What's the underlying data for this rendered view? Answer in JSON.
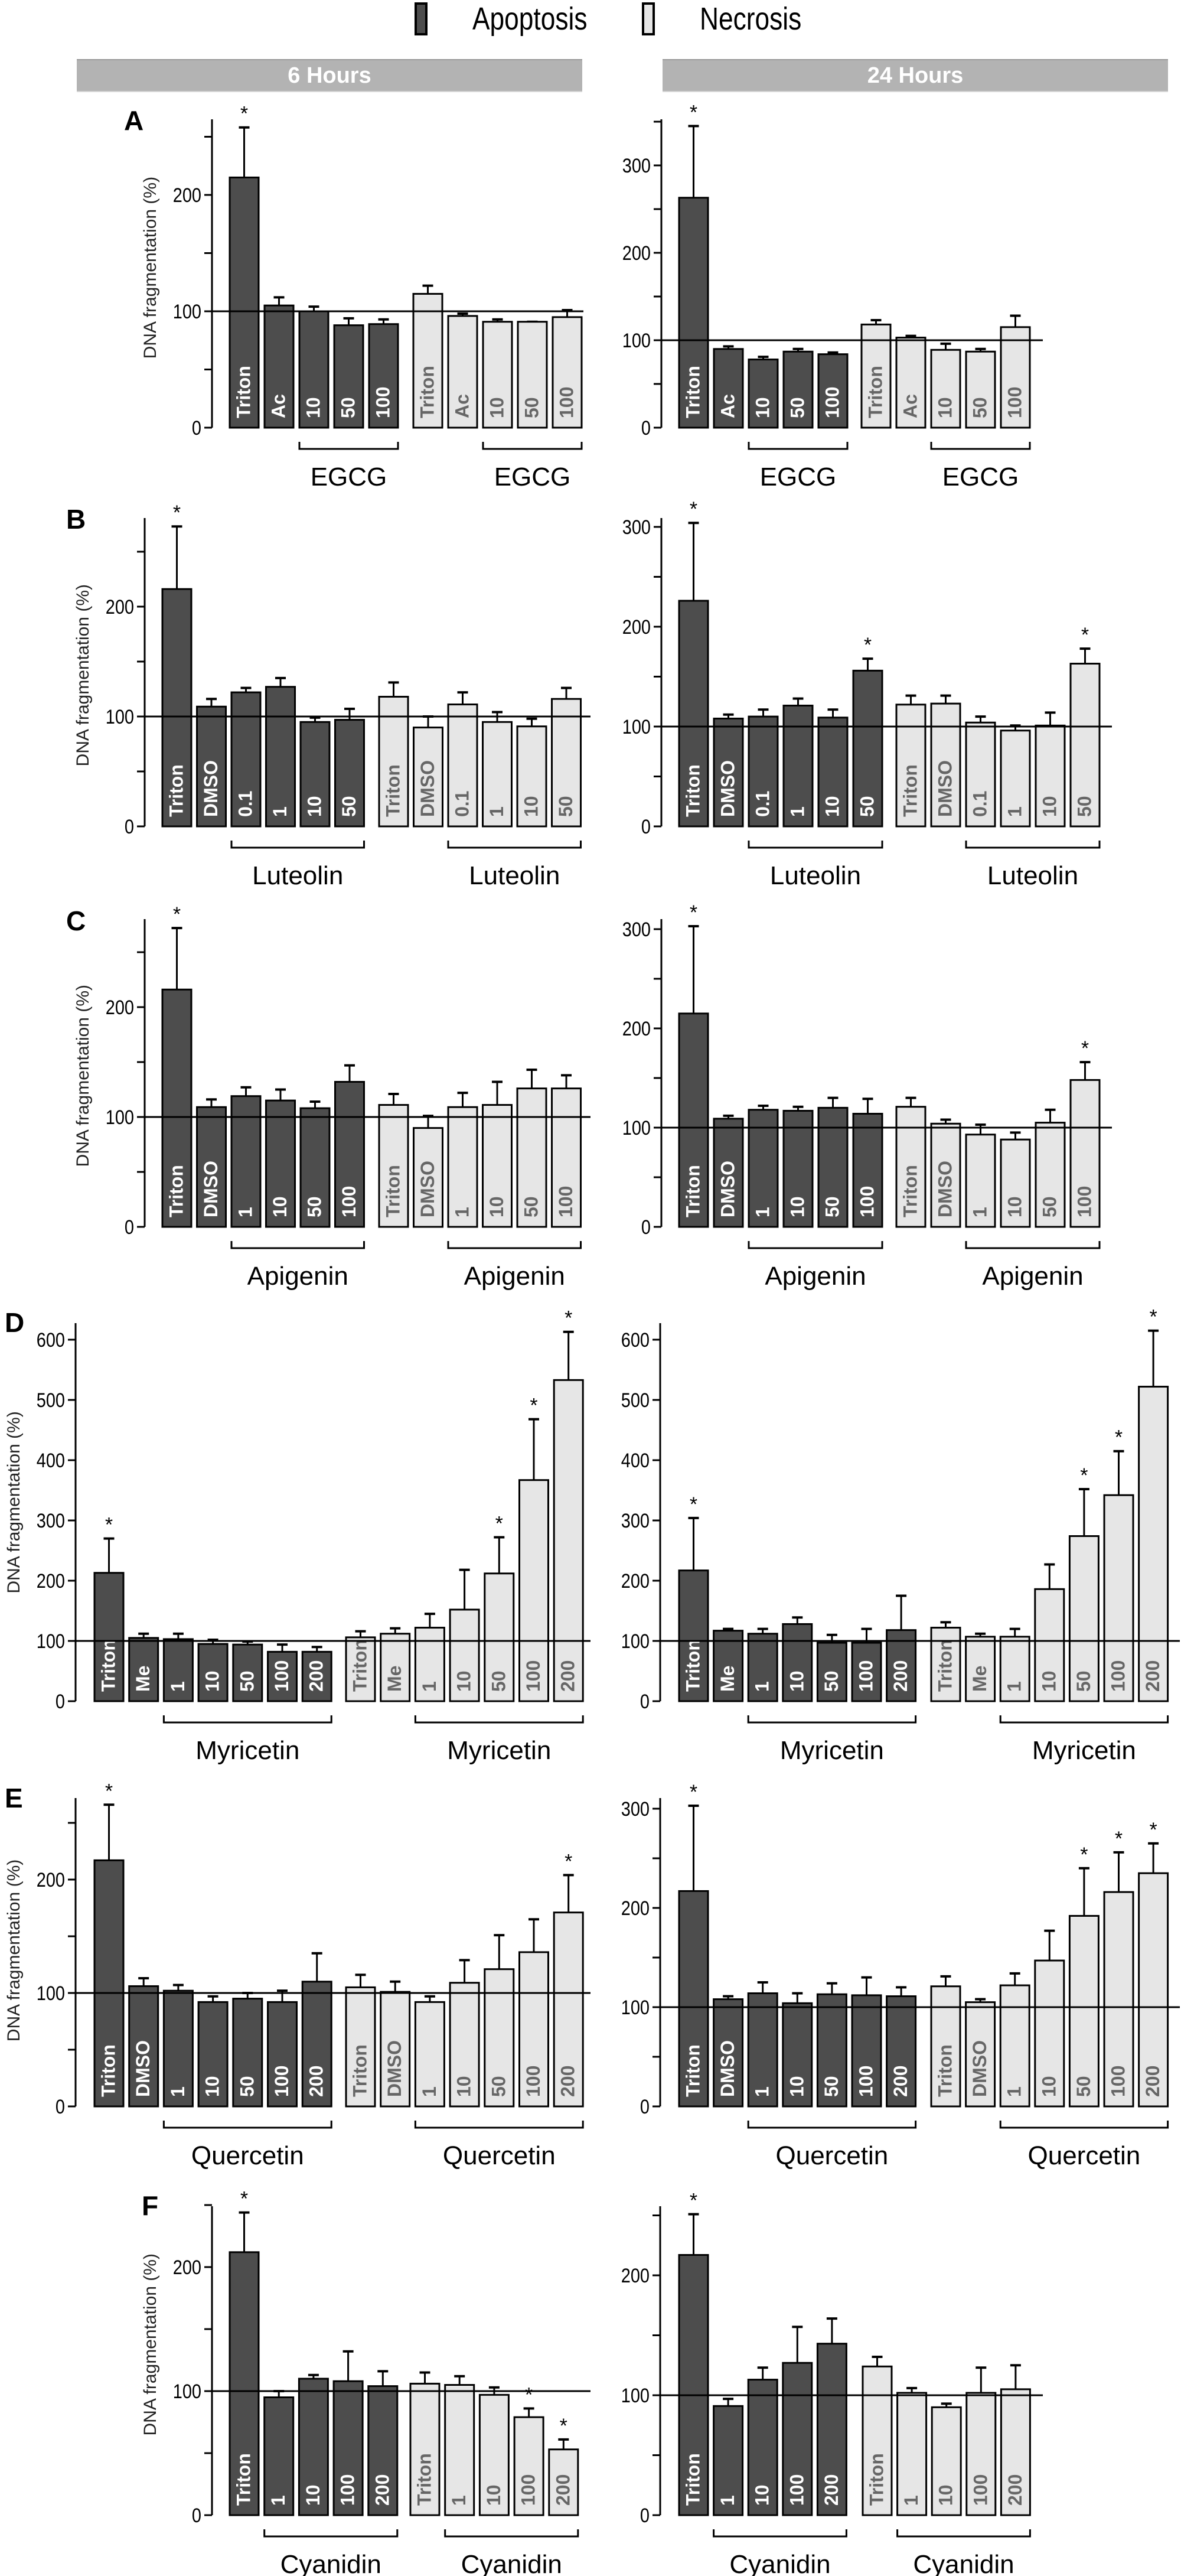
{
  "legend": {
    "items": [
      {
        "label": "Apoptosis",
        "color": "#4d4d4d"
      },
      {
        "label": "Necrosis",
        "color": "#e6e6e6"
      }
    ]
  },
  "headers": {
    "left": "6 Hours",
    "right": "24 Hours"
  },
  "y_axis_label": "DNA fragmentation (%)",
  "colors": {
    "apoptosis": "#4d4d4d",
    "necrosis": "#e6e6e6",
    "header": "#b3b3b3",
    "apoptosis_text": "#ffffff",
    "necrosis_text": "#666666"
  },
  "chart_data": [
    {
      "type": "bar",
      "panel": "A",
      "time": "6 Hours",
      "compound": "EGCG",
      "ylabel": "DNA fragmentation (%)",
      "ylim": [
        0,
        250
      ],
      "yticks": [
        0,
        100,
        200
      ],
      "reference_line": 100,
      "series": [
        {
          "name": "Apoptosis",
          "categories": [
            "Triton",
            "Ac",
            "10",
            "50",
            "100"
          ],
          "values": [
            215,
            105,
            100,
            88,
            89
          ],
          "error_upper": [
            258,
            112,
            104,
            94,
            93
          ],
          "significant": [
            true,
            false,
            false,
            false,
            false
          ]
        },
        {
          "name": "Necrosis",
          "categories": [
            "Triton",
            "Ac",
            "10",
            "50",
            "100"
          ],
          "values": [
            115,
            96,
            91,
            91,
            95
          ],
          "error_upper": [
            122,
            98,
            93,
            91,
            101
          ],
          "significant": [
            false,
            false,
            false,
            false,
            false
          ]
        }
      ]
    },
    {
      "type": "bar",
      "panel": "A",
      "time": "24 Hours",
      "compound": "EGCG",
      "ylabel": "",
      "ylim": [
        0,
        350
      ],
      "yticks": [
        0,
        100,
        200,
        300
      ],
      "reference_line": 100,
      "series": [
        {
          "name": "Apoptosis",
          "categories": [
            "Triton",
            "Ac",
            "10",
            "50",
            "100"
          ],
          "values": [
            263,
            90,
            78,
            87,
            84
          ],
          "error_upper": [
            345,
            93,
            81,
            90,
            86
          ],
          "significant": [
            true,
            false,
            false,
            false,
            false
          ]
        },
        {
          "name": "Necrosis",
          "categories": [
            "Triton",
            "Ac",
            "10",
            "50",
            "100"
          ],
          "values": [
            118,
            103,
            89,
            87,
            115
          ],
          "error_upper": [
            123,
            105,
            96,
            90,
            128
          ],
          "significant": [
            false,
            false,
            false,
            false,
            false
          ]
        }
      ]
    },
    {
      "type": "bar",
      "panel": "B",
      "time": "6 Hours",
      "compound": "Luteolin",
      "ylabel": "DNA fragmentation (%)",
      "ylim": [
        0,
        250
      ],
      "yticks": [
        0,
        100,
        200
      ],
      "reference_line": 100,
      "series": [
        {
          "name": "Apoptosis",
          "categories": [
            "Triton",
            "DMSO",
            "0.1",
            "1",
            "10",
            "50"
          ],
          "values": [
            216,
            109,
            122,
            127,
            95,
            97
          ],
          "error_upper": [
            273,
            116,
            126,
            135,
            99,
            107
          ],
          "significant": [
            true,
            false,
            false,
            false,
            false,
            false
          ]
        },
        {
          "name": "Necrosis",
          "categories": [
            "Triton",
            "DMSO",
            "0.1",
            "1",
            "10",
            "50"
          ],
          "values": [
            118,
            90,
            111,
            95,
            91,
            116
          ],
          "error_upper": [
            131,
            100,
            122,
            104,
            98,
            126
          ],
          "significant": [
            false,
            false,
            false,
            false,
            false,
            false
          ]
        }
      ]
    },
    {
      "type": "bar",
      "panel": "B",
      "time": "24 Hours",
      "compound": "Luteolin",
      "ylabel": "",
      "ylim": [
        0,
        300
      ],
      "yticks": [
        0,
        100,
        200,
        300
      ],
      "reference_line": 100,
      "series": [
        {
          "name": "Apoptosis",
          "categories": [
            "Triton",
            "DMSO",
            "0.1",
            "1",
            "10",
            "50"
          ],
          "values": [
            226,
            108,
            110,
            121,
            109,
            156
          ],
          "error_upper": [
            304,
            112,
            117,
            128,
            117,
            168
          ],
          "significant": [
            true,
            false,
            false,
            false,
            false,
            true
          ]
        },
        {
          "name": "Necrosis",
          "categories": [
            "Triton",
            "DMSO",
            "0.1",
            "1",
            "10",
            "50"
          ],
          "values": [
            122,
            123,
            104,
            96,
            101,
            163
          ],
          "error_upper": [
            131,
            131,
            110,
            101,
            114,
            178
          ],
          "significant": [
            false,
            false,
            false,
            false,
            false,
            true
          ]
        }
      ]
    },
    {
      "type": "bar",
      "panel": "C",
      "time": "6 Hours",
      "compound": "Apigenin",
      "ylabel": "DNA fragmentation (%)",
      "ylim": [
        0,
        250
      ],
      "yticks": [
        0,
        100,
        200
      ],
      "reference_line": 100,
      "series": [
        {
          "name": "Apoptosis",
          "categories": [
            "Triton",
            "DMSO",
            "1",
            "10",
            "50",
            "100"
          ],
          "values": [
            216,
            109,
            119,
            115,
            108,
            132
          ],
          "error_upper": [
            272,
            116,
            127,
            125,
            114,
            147
          ],
          "significant": [
            true,
            false,
            false,
            false,
            false,
            false
          ]
        },
        {
          "name": "Necrosis",
          "categories": [
            "Triton",
            "DMSO",
            "1",
            "10",
            "50",
            "100"
          ],
          "values": [
            111,
            90,
            109,
            111,
            126,
            126
          ],
          "error_upper": [
            121,
            101,
            122,
            132,
            143,
            138
          ],
          "significant": [
            false,
            false,
            false,
            false,
            false,
            false
          ]
        }
      ]
    },
    {
      "type": "bar",
      "panel": "C",
      "time": "24 Hours",
      "compound": "Apigenin",
      "ylabel": "",
      "ylim": [
        0,
        300
      ],
      "yticks": [
        0,
        100,
        200,
        300
      ],
      "reference_line": 100,
      "series": [
        {
          "name": "Apoptosis",
          "categories": [
            "Triton",
            "DMSO",
            "1",
            "10",
            "50",
            "100"
          ],
          "values": [
            215,
            109,
            118,
            117,
            120,
            114
          ],
          "error_upper": [
            303,
            112,
            122,
            121,
            130,
            129
          ],
          "significant": [
            true,
            false,
            false,
            false,
            false,
            false
          ]
        },
        {
          "name": "Necrosis",
          "categories": [
            "Triton",
            "DMSO",
            "1",
            "10",
            "50",
            "100"
          ],
          "values": [
            121,
            104,
            93,
            88,
            105,
            148
          ],
          "error_upper": [
            130,
            108,
            103,
            95,
            118,
            166
          ],
          "significant": [
            false,
            false,
            false,
            false,
            false,
            true
          ]
        }
      ]
    },
    {
      "type": "bar",
      "panel": "D",
      "time": "6 Hours",
      "compound": "Myricetin",
      "ylabel": "DNA fragmentation (%)",
      "ylim": [
        0,
        600
      ],
      "yticks": [
        0,
        100,
        200,
        300,
        400,
        500,
        600
      ],
      "reference_line": 100,
      "series": [
        {
          "name": "Apoptosis",
          "categories": [
            "Triton",
            "Me",
            "1",
            "10",
            "50",
            "100",
            "200"
          ],
          "values": [
            213,
            105,
            103,
            95,
            94,
            82,
            82
          ],
          "error_upper": [
            270,
            112,
            112,
            102,
            99,
            94,
            90
          ],
          "significant": [
            true,
            false,
            false,
            false,
            false,
            false,
            false
          ]
        },
        {
          "name": "Necrosis",
          "categories": [
            "Triton",
            "Me",
            "1",
            "10",
            "50",
            "100",
            "200"
          ],
          "values": [
            106,
            112,
            122,
            152,
            212,
            367,
            533
          ],
          "error_upper": [
            116,
            121,
            145,
            218,
            272,
            468,
            613
          ],
          "significant": [
            false,
            false,
            false,
            false,
            true,
            true,
            true
          ]
        }
      ]
    },
    {
      "type": "bar",
      "panel": "D",
      "time": "24 Hours",
      "compound": "Myricetin",
      "ylabel": "",
      "ylim": [
        0,
        600
      ],
      "yticks": [
        0,
        100,
        200,
        300,
        400,
        500,
        600
      ],
      "reference_line": 100,
      "series": [
        {
          "name": "Apoptosis",
          "categories": [
            "Triton",
            "Me",
            "1",
            "10",
            "50",
            "100",
            "200"
          ],
          "values": [
            217,
            117,
            112,
            128,
            97,
            97,
            118
          ],
          "error_upper": [
            304,
            120,
            120,
            139,
            110,
            120,
            175
          ],
          "significant": [
            true,
            false,
            false,
            false,
            false,
            false,
            false
          ]
        },
        {
          "name": "Necrosis",
          "categories": [
            "Triton",
            "Me",
            "1",
            "10",
            "50",
            "100",
            "200"
          ],
          "values": [
            122,
            107,
            107,
            186,
            274,
            342,
            522
          ],
          "error_upper": [
            131,
            112,
            120,
            227,
            352,
            415,
            615
          ],
          "significant": [
            false,
            false,
            false,
            false,
            true,
            true,
            true
          ]
        }
      ]
    },
    {
      "type": "bar",
      "panel": "E",
      "time": "6 Hours",
      "compound": "Quercetin",
      "ylabel": "DNA fragmentation (%)",
      "ylim": [
        0,
        250
      ],
      "yticks": [
        0,
        100,
        200
      ],
      "reference_line": 100,
      "series": [
        {
          "name": "Apoptosis",
          "categories": [
            "Triton",
            "DMSO",
            "1",
            "10",
            "50",
            "100",
            "200"
          ],
          "values": [
            217,
            106,
            102,
            92,
            95,
            92,
            110
          ],
          "error_upper": [
            266,
            113,
            107,
            97,
            100,
            102,
            135
          ],
          "significant": [
            true,
            false,
            false,
            false,
            false,
            false,
            false
          ]
        },
        {
          "name": "Necrosis",
          "categories": [
            "Triton",
            "DMSO",
            "1",
            "10",
            "50",
            "100",
            "200"
          ],
          "values": [
            105,
            101,
            92,
            109,
            121,
            136,
            171
          ],
          "error_upper": [
            116,
            110,
            97,
            129,
            151,
            165,
            204
          ],
          "significant": [
            false,
            false,
            false,
            false,
            false,
            false,
            true
          ]
        }
      ]
    },
    {
      "type": "bar",
      "panel": "E",
      "time": "24 Hours",
      "compound": "Quercetin",
      "ylabel": "",
      "ylim": [
        0,
        300
      ],
      "yticks": [
        0,
        100,
        200,
        300
      ],
      "reference_line": 100,
      "series": [
        {
          "name": "Apoptosis",
          "categories": [
            "Triton",
            "DMSO",
            "1",
            "10",
            "50",
            "100",
            "200"
          ],
          "values": [
            217,
            108,
            114,
            104,
            113,
            112,
            111
          ],
          "error_upper": [
            303,
            111,
            125,
            114,
            124,
            130,
            120
          ],
          "significant": [
            true,
            false,
            false,
            false,
            false,
            false,
            false
          ]
        },
        {
          "name": "Necrosis",
          "categories": [
            "Triton",
            "DMSO",
            "1",
            "10",
            "50",
            "100",
            "200"
          ],
          "values": [
            121,
            105,
            122,
            147,
            192,
            216,
            235
          ],
          "error_upper": [
            131,
            108,
            134,
            177,
            240,
            256,
            265
          ],
          "significant": [
            false,
            false,
            false,
            false,
            true,
            true,
            true
          ]
        }
      ]
    },
    {
      "type": "bar",
      "panel": "F",
      "time": "6 Hours",
      "compound": "Cyanidin",
      "ylabel": "DNA fragmentation (%)",
      "ylim": [
        0,
        250
      ],
      "yticks": [
        0,
        100,
        200
      ],
      "reference_line": 100,
      "series": [
        {
          "name": "Apoptosis",
          "categories": [
            "Triton",
            "1",
            "10",
            "100",
            "200"
          ],
          "values": [
            212,
            95,
            110,
            108,
            104
          ],
          "error_upper": [
            244,
            100,
            113,
            132,
            116
          ],
          "significant": [
            true,
            false,
            false,
            false,
            false
          ]
        },
        {
          "name": "Necrosis",
          "categories": [
            "Triton",
            "1",
            "10",
            "100",
            "200"
          ],
          "values": [
            106,
            105,
            97,
            79,
            53
          ],
          "error_upper": [
            115,
            112,
            103,
            86,
            61
          ],
          "significant": [
            false,
            false,
            false,
            true,
            true
          ]
        }
      ]
    },
    {
      "type": "bar",
      "panel": "F",
      "time": "24 Hours",
      "compound": "Cyanidin",
      "ylabel": "",
      "ylim": [
        0,
        250
      ],
      "yticks": [
        0,
        100,
        200
      ],
      "reference_line": 100,
      "series": [
        {
          "name": "Apoptosis",
          "categories": [
            "Triton",
            "1",
            "10",
            "100",
            "200"
          ],
          "values": [
            217,
            91,
            113,
            127,
            143
          ],
          "error_upper": [
            251,
            97,
            123,
            157,
            164
          ],
          "significant": [
            true,
            false,
            false,
            false,
            false
          ]
        },
        {
          "name": "Necrosis",
          "categories": [
            "Triton",
            "1",
            "10",
            "100",
            "200"
          ],
          "values": [
            124,
            102,
            90,
            102,
            105
          ],
          "error_upper": [
            132,
            106,
            93,
            123,
            125
          ],
          "significant": [
            false,
            false,
            false,
            false,
            false
          ]
        }
      ]
    }
  ]
}
